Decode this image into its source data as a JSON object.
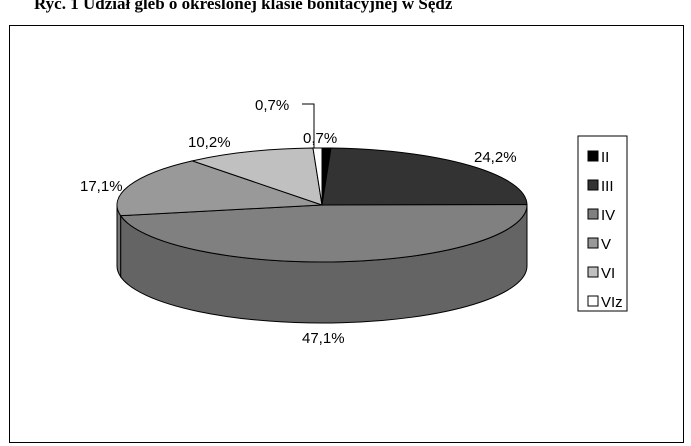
{
  "title": "Ryc. 1 Udział gleb o określonej klasie bonitacyjnej w Sędz",
  "chart_data": {
    "type": "pie",
    "style": "3d",
    "categories": [
      "II",
      "III",
      "IV",
      "V",
      "VI",
      "VIz"
    ],
    "values": [
      0.7,
      24.2,
      47.1,
      17.1,
      10.2,
      0.7
    ],
    "data_labels": [
      "0,7%",
      "24,2%",
      "47,1%",
      "17,1%",
      "10,2%",
      "0,7%"
    ],
    "colors": [
      "#000000",
      "#333333",
      "#808080",
      "#999999",
      "#c0c0c0",
      "#ffffff"
    ],
    "legend_position": "right"
  }
}
